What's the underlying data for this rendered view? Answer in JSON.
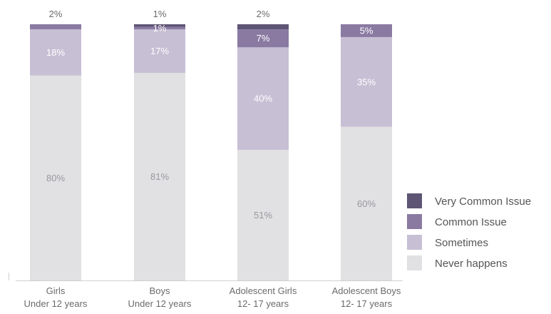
{
  "chart_data": {
    "type": "bar",
    "stacked": true,
    "normalized": true,
    "categories": [
      [
        "Girls",
        "Under 12 years"
      ],
      [
        "Boys",
        "Under 12 years"
      ],
      [
        "Adolescent Girls",
        "12- 17 years"
      ],
      [
        "Adolescent Boys",
        "12- 17 years"
      ]
    ],
    "series": [
      {
        "name": "Never happens",
        "color": "#e1e0e2",
        "label_color": "#9a98a0",
        "values": [
          80,
          81,
          51,
          60
        ],
        "labels": [
          "80%",
          "81%",
          "51%",
          "60%"
        ]
      },
      {
        "name": "Sometimes",
        "color": "#c7bfd4",
        "label_color": "#ffffff",
        "values": [
          18,
          17,
          40,
          35
        ],
        "labels": [
          "18%",
          "17%",
          "40%",
          "35%"
        ]
      },
      {
        "name": "Common Issue",
        "color": "#8a7aa2",
        "label_color": "#ffffff",
        "values": [
          2,
          1,
          7,
          5
        ],
        "labels": [
          "",
          "1%",
          "7%",
          "5%"
        ]
      },
      {
        "name": "Very Common Issue",
        "color": "#5e5474",
        "label_color": "#ffffff",
        "values": [
          0,
          1,
          2,
          0
        ],
        "labels": [
          "",
          "",
          "",
          ""
        ]
      }
    ],
    "top_labels": [
      "2%",
      "1%",
      "2%",
      ""
    ],
    "legend": {
      "position": "right",
      "items": [
        "Very Common Issue",
        "Common Issue",
        "Sometimes",
        "Never happens"
      ]
    },
    "title": "",
    "xlabel": "",
    "ylabel": "",
    "ylim": [
      0,
      100
    ],
    "grid": false,
    "axis_color": "#d0d0d0",
    "category_label_color": "#6b6b6b",
    "top_label_color": "#6b6b6b",
    "legend_text_color": "#555555"
  }
}
